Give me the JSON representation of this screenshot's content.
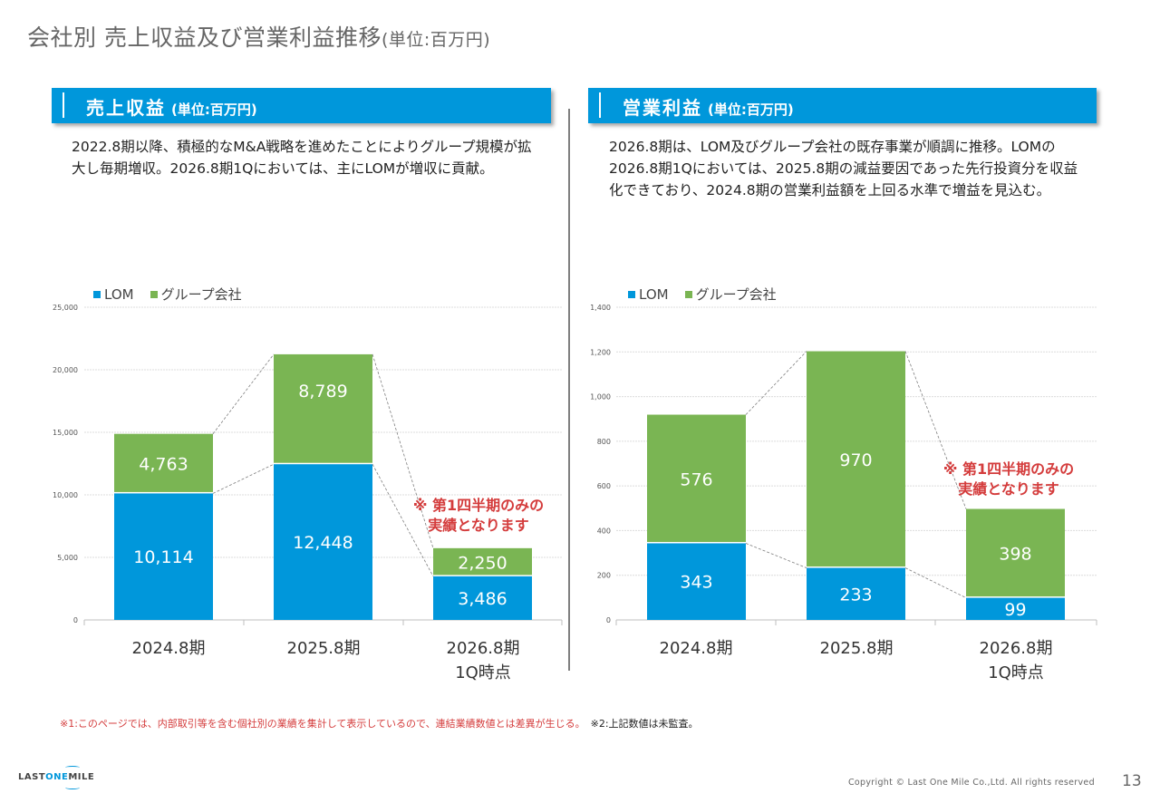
{
  "page": {
    "title": "会社別 売上収益及び営業利益推移",
    "title_unit": "(単位:百万円)",
    "page_number": "13",
    "copyright": "Copyright © Last One Mile Co.,Ltd. All rights reserved",
    "logo": {
      "pre": "LAST",
      "mid": "ONE",
      "post": "MILE"
    }
  },
  "colors": {
    "lom": "#0097db",
    "group": "#7ab553",
    "header_bg": "#0097db",
    "note_red": "#d43c3c"
  },
  "sections": {
    "left": {
      "title": "売上収益",
      "unit": "(単位:百万円)",
      "description": "2022.8期以降、積極的なM&A戦略を進めたことによりグループ規模が拡大し毎期増収。2026.8期1Qにおいては、主にLOMが増収に貢献。"
    },
    "right": {
      "title": "営業利益",
      "unit": "(単位:百万円)",
      "description": "2026.8期は、LOM及びグループ会社の既存事業が順調に推移。LOMの2026.8期1Qにおいては、2025.8期の減益要因であった先行投資分を収益化できており、2024.8期の営業利益額を上回る水準で増益を見込む。"
    }
  },
  "legend": {
    "lom": "LOM",
    "group": "グループ会社"
  },
  "chart_data": [
    {
      "type": "bar",
      "stacked": true,
      "title": "売上収益",
      "categories": [
        "2024.8期",
        "2025.8期",
        "2026.8期\n1Q時点"
      ],
      "series": [
        {
          "name": "LOM",
          "values": [
            10114,
            12448,
            3486
          ]
        },
        {
          "name": "グループ会社",
          "values": [
            4763,
            8789,
            2250
          ]
        }
      ],
      "data_labels": [
        [
          "10,114",
          "12,448",
          "3,486"
        ],
        [
          "4,763",
          "8,789",
          "2,250"
        ]
      ],
      "ylim": [
        0,
        25000
      ],
      "yticks": [
        0,
        5000,
        10000,
        15000,
        20000,
        25000
      ],
      "ytick_labels": [
        "0",
        "5,000",
        "10,000",
        "15,000",
        "20,000",
        "25,000"
      ],
      "grid": true,
      "legend": "top-left",
      "annotation": [
        "※ 第1四半期のみの",
        "実績となります"
      ],
      "xlabel": "",
      "ylabel": ""
    },
    {
      "type": "bar",
      "stacked": true,
      "title": "営業利益",
      "categories": [
        "2024.8期",
        "2025.8期",
        "2026.8期\n1Q時点"
      ],
      "series": [
        {
          "name": "LOM",
          "values": [
            343,
            233,
            99
          ]
        },
        {
          "name": "グループ会社",
          "values": [
            576,
            970,
            398
          ]
        }
      ],
      "data_labels": [
        [
          "343",
          "233",
          "99"
        ],
        [
          "576",
          "970",
          "398"
        ]
      ],
      "ylim": [
        0,
        1400
      ],
      "yticks": [
        0,
        200,
        400,
        600,
        800,
        1000,
        1200,
        1400
      ],
      "ytick_labels": [
        "0",
        "200",
        "400",
        "600",
        "800",
        "1,000",
        "1,200",
        "1,400"
      ],
      "grid": true,
      "legend": "top-left",
      "annotation": [
        "※ 第1四半期のみの",
        "実績となります"
      ],
      "xlabel": "",
      "ylabel": ""
    }
  ],
  "footnotes": {
    "note1": "※1:このページでは、内部取引等を含む個社別の業績を集計して表示しているので、連結業績数値とは差異が生じる。",
    "note2": "※2:上記数値は未監査。"
  }
}
